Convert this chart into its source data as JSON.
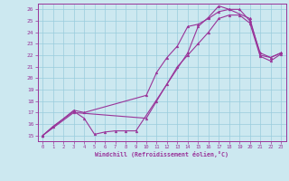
{
  "xlabel": "Windchill (Refroidissement éolien,°C)",
  "bg_color": "#cce8f0",
  "line_color": "#993399",
  "grid_color": "#99ccdd",
  "xlim": [
    -0.5,
    23.5
  ],
  "ylim": [
    14.5,
    26.5
  ],
  "xticks": [
    0,
    1,
    2,
    3,
    4,
    5,
    6,
    7,
    8,
    9,
    10,
    11,
    12,
    13,
    14,
    15,
    16,
    17,
    18,
    19,
    20,
    21,
    22,
    23
  ],
  "yticks": [
    15,
    16,
    17,
    18,
    19,
    20,
    21,
    22,
    23,
    24,
    25,
    26
  ],
  "line1_x": [
    0,
    1,
    3,
    4,
    5,
    6,
    7,
    8,
    9,
    14,
    15,
    16,
    17,
    18,
    20,
    21,
    22,
    23
  ],
  "line1_y": [
    15,
    15.8,
    17.1,
    16.5,
    15.1,
    15.3,
    15.4,
    15.4,
    15.4,
    22.2,
    24.5,
    25.3,
    26.3,
    26.0,
    25.2,
    22.0,
    21.8,
    22.2
  ],
  "line2_x": [
    0,
    3,
    4,
    10,
    11,
    12,
    13,
    14,
    15,
    16,
    17,
    18,
    19,
    20,
    21,
    22,
    23
  ],
  "line2_y": [
    15,
    17.2,
    17.0,
    18.5,
    20.5,
    21.8,
    22.8,
    24.5,
    24.7,
    25.2,
    25.8,
    26.0,
    26.0,
    25.0,
    22.2,
    21.8,
    22.2
  ],
  "line3_x": [
    0,
    3,
    10,
    11,
    12,
    13,
    14,
    15,
    16,
    17,
    18,
    19,
    20,
    21,
    22,
    23
  ],
  "line3_y": [
    15,
    17.0,
    16.5,
    18.0,
    19.5,
    21.0,
    22.0,
    23.0,
    24.0,
    25.2,
    25.5,
    25.5,
    24.8,
    21.9,
    21.5,
    22.1
  ]
}
